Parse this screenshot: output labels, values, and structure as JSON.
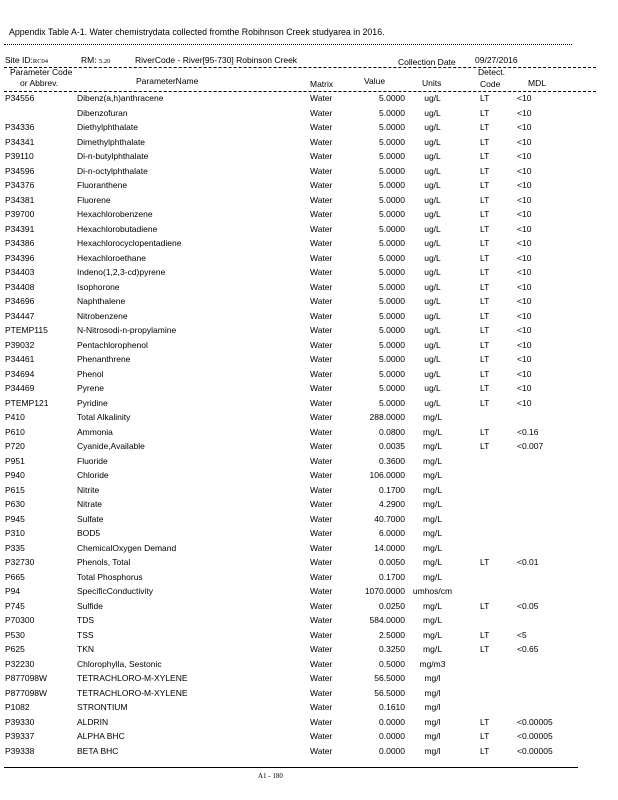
{
  "title": "Appendix Table A-1. Water chemistrydata collected fromthe Robihnson Creek studyarea in 2016.",
  "site": {
    "site_label": "Site ID:",
    "site_id": "RC04",
    "rm_label": "RM:",
    "rm": "5.20",
    "river_code": "RiverCode - River[95-730] Robinson Creek",
    "date_label": "Collection Date",
    "date": "09/27/2016"
  },
  "headers": {
    "code1": "Parameter Code",
    "code2": "or Abbrev.",
    "name": "ParameterName",
    "matrix": "Matrix",
    "value": "Value",
    "units": "Units",
    "detect1": "Detect.",
    "detect2": "Code",
    "mdl": "MDL"
  },
  "rows": [
    {
      "code": "P34556",
      "name": "Dibenz(a,h)anthracene",
      "matrix": "Water",
      "value": "5.0000",
      "units": "ug/L",
      "detect": "LT",
      "mdl": "<10"
    },
    {
      "code": "",
      "name": "Dibenzofuran",
      "matrix": "Water",
      "value": "5.0000",
      "units": "ug/L",
      "detect": "LT",
      "mdl": "<10"
    },
    {
      "code": "P34336",
      "name": "Diethylphthalate",
      "matrix": "Water",
      "value": "5.0000",
      "units": "ug/L",
      "detect": "LT",
      "mdl": "<10"
    },
    {
      "code": "P34341",
      "name": "Dimethylphthalate",
      "matrix": "Water",
      "value": "5.0000",
      "units": "ug/L",
      "detect": "LT",
      "mdl": "<10"
    },
    {
      "code": "P39110",
      "name": "Di-n-butylphthalate",
      "matrix": "Water",
      "value": "5.0000",
      "units": "ug/L",
      "detect": "LT",
      "mdl": "<10"
    },
    {
      "code": "P34596",
      "name": "Di-n-octylphthalate",
      "matrix": "Water",
      "value": "5.0000",
      "units": "ug/L",
      "detect": "LT",
      "mdl": "<10"
    },
    {
      "code": "P34376",
      "name": "Fluoranthene",
      "matrix": "Water",
      "value": "5.0000",
      "units": "ug/L",
      "detect": "LT",
      "mdl": "<10"
    },
    {
      "code": "P34381",
      "name": "Fluorene",
      "matrix": "Water",
      "value": "5.0000",
      "units": "ug/L",
      "detect": "LT",
      "mdl": "<10"
    },
    {
      "code": "P39700",
      "name": "Hexachlorobenzene",
      "matrix": "Water",
      "value": "5.0000",
      "units": "ug/L",
      "detect": "LT",
      "mdl": "<10"
    },
    {
      "code": "P34391",
      "name": "Hexachlorobutadiene",
      "matrix": "Water",
      "value": "5.0000",
      "units": "ug/L",
      "detect": "LT",
      "mdl": "<10"
    },
    {
      "code": "P34386",
      "name": "Hexachlorocyclopentadiene",
      "matrix": "Water",
      "value": "5.0000",
      "units": "ug/L",
      "detect": "LT",
      "mdl": "<10"
    },
    {
      "code": "P34396",
      "name": "Hexachloroethane",
      "matrix": "Water",
      "value": "5.0000",
      "units": "ug/L",
      "detect": "LT",
      "mdl": "<10"
    },
    {
      "code": "P34403",
      "name": "Indeno(1,2,3-cd)pyrene",
      "matrix": "Water",
      "value": "5.0000",
      "units": "ug/L",
      "detect": "LT",
      "mdl": "<10"
    },
    {
      "code": "P34408",
      "name": "Isophorone",
      "matrix": "Water",
      "value": "5.0000",
      "units": "ug/L",
      "detect": "LT",
      "mdl": "<10"
    },
    {
      "code": "P34696",
      "name": "Naphthalene",
      "matrix": "Water",
      "value": "5.0000",
      "units": "ug/L",
      "detect": "LT",
      "mdl": "<10"
    },
    {
      "code": "P34447",
      "name": "Nitrobenzene",
      "matrix": "Water",
      "value": "5.0000",
      "units": "ug/L",
      "detect": "LT",
      "mdl": "<10"
    },
    {
      "code": "PTEMP115",
      "name": "N-Nitrosodi-n-propylamine",
      "matrix": "Water",
      "value": "5.0000",
      "units": "ug/L",
      "detect": "LT",
      "mdl": "<10"
    },
    {
      "code": "P39032",
      "name": "Pentachlorophenol",
      "matrix": "Water",
      "value": "5.0000",
      "units": "ug/L",
      "detect": "LT",
      "mdl": "<10"
    },
    {
      "code": "P34461",
      "name": "Phenanthrene",
      "matrix": "Water",
      "value": "5.0000",
      "units": "ug/L",
      "detect": "LT",
      "mdl": "<10"
    },
    {
      "code": "P34694",
      "name": "Phenol",
      "matrix": "Water",
      "value": "5.0000",
      "units": "ug/L",
      "detect": "LT",
      "mdl": "<10"
    },
    {
      "code": "P34469",
      "name": "Pyrene",
      "matrix": "Water",
      "value": "5.0000",
      "units": "ug/L",
      "detect": "LT",
      "mdl": "<10"
    },
    {
      "code": "PTEMP121",
      "name": "Pyridine",
      "matrix": "Water",
      "value": "5.0000",
      "units": "ug/L",
      "detect": "LT",
      "mdl": "<10"
    },
    {
      "code": "P410",
      "name": "Total Alkalinity",
      "matrix": "Water",
      "value": "288.0000",
      "units": "mg/L",
      "detect": "",
      "mdl": ""
    },
    {
      "code": "P610",
      "name": "Ammonia",
      "matrix": "Water",
      "value": "0.0800",
      "units": "mg/L",
      "detect": "LT",
      "mdl": "<0.16"
    },
    {
      "code": "P720",
      "name": "Cyanide,Available",
      "matrix": "Water",
      "value": "0.0035",
      "units": "mg/L",
      "detect": "LT",
      "mdl": "<0.007"
    },
    {
      "code": "P951",
      "name": "Fluoride",
      "matrix": "Water",
      "value": "0.3600",
      "units": "mg/L",
      "detect": "",
      "mdl": ""
    },
    {
      "code": "P940",
      "name": "Chloride",
      "matrix": "Water",
      "value": "106.0000",
      "units": "mg/L",
      "detect": "",
      "mdl": ""
    },
    {
      "code": "P615",
      "name": "Nitrite",
      "matrix": "Water",
      "value": "0.1700",
      "units": "mg/L",
      "detect": "",
      "mdl": ""
    },
    {
      "code": "P630",
      "name": "Nitrate",
      "matrix": "Water",
      "value": "4.2900",
      "units": "mg/L",
      "detect": "",
      "mdl": ""
    },
    {
      "code": "P945",
      "name": "Sulfate",
      "matrix": "Water",
      "value": "40.7000",
      "units": "mg/L",
      "detect": "",
      "mdl": ""
    },
    {
      "code": "P310",
      "name": "BOD5",
      "matrix": "Water",
      "value": "6.0000",
      "units": "mg/L",
      "detect": "",
      "mdl": ""
    },
    {
      "code": "P335",
      "name": "ChemicalOxygen Demand",
      "matrix": "Water",
      "value": "14.0000",
      "units": "mg/L",
      "detect": "",
      "mdl": ""
    },
    {
      "code": "P32730",
      "name": "Phenols, Total",
      "matrix": "Water",
      "value": "0.0050",
      "units": "mg/L",
      "detect": "LT",
      "mdl": "<0.01"
    },
    {
      "code": "P665",
      "name": "Total Phosphorus",
      "matrix": "Water",
      "value": "0.1700",
      "units": "mg/L",
      "detect": "",
      "mdl": ""
    },
    {
      "code": "P94",
      "name": "SpecificConductivity",
      "matrix": "Water",
      "value": "1070.0000",
      "units": "umhos/cm",
      "detect": "",
      "mdl": ""
    },
    {
      "code": "P745",
      "name": "Sulfide",
      "matrix": "Water",
      "value": "0.0250",
      "units": "mg/L",
      "detect": "LT",
      "mdl": "<0.05"
    },
    {
      "code": "P70300",
      "name": "TDS",
      "matrix": "Water",
      "value": "584.0000",
      "units": "mg/L",
      "detect": "",
      "mdl": ""
    },
    {
      "code": "P530",
      "name": "TSS",
      "matrix": "Water",
      "value": "2.5000",
      "units": "mg/L",
      "detect": "LT",
      "mdl": "<5"
    },
    {
      "code": "P625",
      "name": "TKN",
      "matrix": "Water",
      "value": "0.3250",
      "units": "mg/L",
      "detect": "LT",
      "mdl": "<0.65"
    },
    {
      "code": "P32230",
      "name": "Chlorophylla, Sestonic",
      "matrix": "Water",
      "value": "0.5000",
      "units": "mg/m3",
      "detect": "",
      "mdl": ""
    },
    {
      "code": "P877098W",
      "name": "TETRACHLORO-M-XYLENE",
      "matrix": "Water",
      "value": "56.5000",
      "units": "mg/l",
      "detect": "",
      "mdl": ""
    },
    {
      "code": "P877098W",
      "name": "TETRACHLORO-M-XYLENE",
      "matrix": "Water",
      "value": "56.5000",
      "units": "mg/l",
      "detect": "",
      "mdl": ""
    },
    {
      "code": "P1082",
      "name": "STRONTIUM",
      "matrix": "Water",
      "value": "0.1610",
      "units": "mg/l",
      "detect": "",
      "mdl": ""
    },
    {
      "code": "P39330",
      "name": "ALDRIN",
      "matrix": "Water",
      "value": "0.0000",
      "units": "mg/l",
      "detect": "LT",
      "mdl": "<0.00005"
    },
    {
      "code": "P39337",
      "name": "ALPHA BHC",
      "matrix": "Water",
      "value": "0.0000",
      "units": "mg/l",
      "detect": "LT",
      "mdl": "<0.00005"
    },
    {
      "code": "P39338",
      "name": "BETA BHC",
      "matrix": "Water",
      "value": "0.0000",
      "units": "mg/l",
      "detect": "LT",
      "mdl": "<0.00005"
    }
  ],
  "footer": {
    "page": "A1 - 180"
  }
}
